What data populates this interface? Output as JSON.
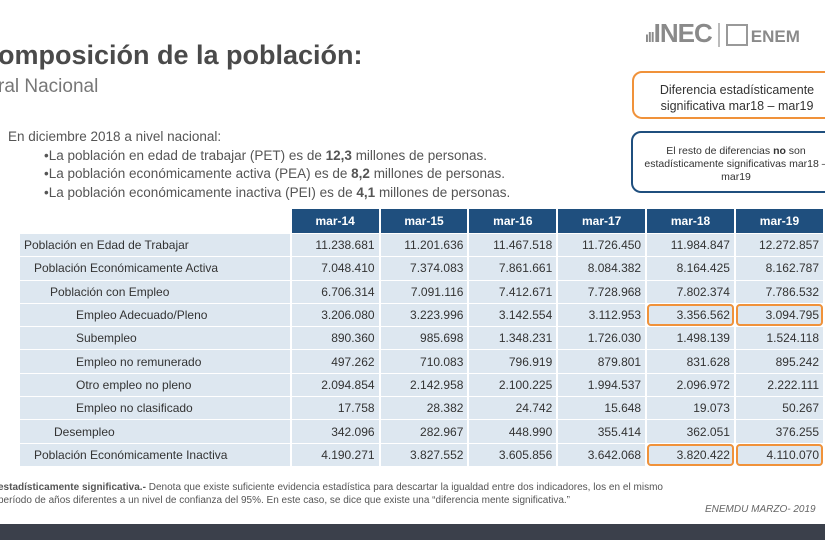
{
  "header": {
    "title": "omposición de la población:",
    "subtitle": "ral Nacional",
    "logo": "INEC",
    "logo2": "ENEM"
  },
  "legend": {
    "significant": "Diferencia estadísticamente significativa   mar18 – mar19",
    "not_sig_1": "El resto de diferencias ",
    "not_sig_bold": "no",
    "not_sig_2": " son estadísticamente significativas mar18 – mar19"
  },
  "intro": {
    "lead": "En diciembre 2018 a nivel nacional:",
    "bullets": [
      {
        "pre": "•La población en edad de trabajar (PET) es de ",
        "bold": "12,3",
        "post": " millones de personas."
      },
      {
        "pre": "•La población económicamente activa (PEA) es de ",
        "bold": "8,2",
        "post": " millones de personas."
      },
      {
        "pre": "•La población económicamente inactiva (PEI) es de ",
        "bold": "4,1",
        "post": " millones de personas."
      }
    ]
  },
  "table": {
    "columns": [
      "mar-14",
      "mar-15",
      "mar-16",
      "mar-17",
      "mar-18",
      "mar-19"
    ],
    "rows": [
      {
        "label": "Población en Edad de Trabajar",
        "values": [
          "11.238.681",
          "11.201.636",
          "11.467.518",
          "11.726.450",
          "11.984.847",
          "12.272.857"
        ]
      },
      {
        "label": "Población Económicamente Activa",
        "values": [
          "7.048.410",
          "7.374.083",
          "7.861.661",
          "8.084.382",
          "8.164.425",
          "8.162.787"
        ]
      },
      {
        "label": "Población con Empleo",
        "values": [
          "6.706.314",
          "7.091.116",
          "7.412.671",
          "7.728.968",
          "7.802.374",
          "7.786.532"
        ]
      },
      {
        "label": "Empleo Adecuado/Pleno",
        "values": [
          "3.206.080",
          "3.223.996",
          "3.142.554",
          "3.112.953",
          "3.356.562",
          "3.094.795"
        ],
        "highlight": true
      },
      {
        "label": "Subempleo",
        "values": [
          "890.360",
          "985.698",
          "1.348.231",
          "1.726.030",
          "1.498.139",
          "1.524.118"
        ]
      },
      {
        "label": "Empleo no remunerado",
        "values": [
          "497.262",
          "710.083",
          "796.919",
          "879.801",
          "831.628",
          "895.242"
        ]
      },
      {
        "label": "Otro empleo no pleno",
        "values": [
          "2.094.854",
          "2.142.958",
          "2.100.225",
          "1.994.537",
          "2.096.972",
          "2.222.111"
        ]
      },
      {
        "label": "Empleo no clasificado",
        "values": [
          "17.758",
          "28.382",
          "24.742",
          "15.648",
          "19.073",
          "50.267"
        ]
      },
      {
        "label": "Desempleo",
        "values": [
          "342.096",
          "282.967",
          "448.990",
          "355.414",
          "362.051",
          "376.255"
        ]
      },
      {
        "label": "Población Económicamente Inactiva",
        "values": [
          "4.190.271",
          "3.827.552",
          "3.605.856",
          "3.642.068",
          "3.820.422",
          "4.110.070"
        ],
        "highlight": true
      }
    ]
  },
  "footnote": {
    "bold": "estadísticamente significativa.-",
    "text": " Denota que existe suficiente evidencia estadística para descartar la igualdad entre dos indicadores, los en el mismo período de años diferentes a un nivel de confianza del 95%. En este caso, se dice que existe una “diferencia mente significativa.”"
  },
  "source": "ENEMDU MARZO- 2019",
  "colors": {
    "header": "#1f4f7e",
    "highlight": "#f0923a",
    "cell": "#dde7f0"
  }
}
